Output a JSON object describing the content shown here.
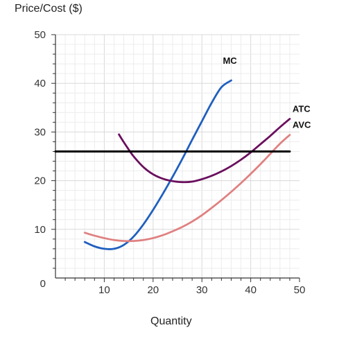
{
  "chart_data": {
    "type": "line",
    "ylabel": "Price/Cost ($)",
    "xlabel": "Quantity",
    "xlim": [
      0,
      50
    ],
    "ylim": [
      0,
      50
    ],
    "xticks": [
      10,
      20,
      30,
      40,
      50
    ],
    "yticks": [
      10,
      20,
      30,
      40,
      50
    ],
    "origin_label": "0",
    "grid": true,
    "series": [
      {
        "name": "MC",
        "color": "#1f5fbf",
        "points": [
          [
            6,
            7.4
          ],
          [
            8,
            6.5
          ],
          [
            10,
            6.0
          ],
          [
            12,
            6.0
          ],
          [
            14,
            6.8
          ],
          [
            16,
            8.5
          ],
          [
            18,
            11.0
          ],
          [
            20,
            14.0
          ],
          [
            22,
            17.3
          ],
          [
            24,
            20.8
          ],
          [
            26,
            24.5
          ],
          [
            28,
            28.4
          ],
          [
            30,
            32.2
          ],
          [
            32,
            36.0
          ],
          [
            34,
            39.2
          ],
          [
            36,
            40.6
          ]
        ]
      },
      {
        "name": "ATC",
        "color": "#6a0f5e",
        "points": [
          [
            13,
            29.5
          ],
          [
            14,
            27.9
          ],
          [
            15,
            26.4
          ],
          [
            16,
            25.0
          ],
          [
            18,
            22.8
          ],
          [
            20,
            21.3
          ],
          [
            22,
            20.4
          ],
          [
            24,
            19.9
          ],
          [
            26,
            19.7
          ],
          [
            28,
            19.8
          ],
          [
            30,
            20.3
          ],
          [
            32,
            21.0
          ],
          [
            34,
            21.9
          ],
          [
            36,
            23.0
          ],
          [
            38,
            24.3
          ],
          [
            40,
            25.8
          ],
          [
            42,
            27.5
          ],
          [
            44,
            29.2
          ],
          [
            46,
            31.0
          ],
          [
            48,
            32.7
          ]
        ]
      },
      {
        "name": "AVC",
        "color": "#e08080",
        "points": [
          [
            6,
            9.3
          ],
          [
            8,
            8.7
          ],
          [
            10,
            8.2
          ],
          [
            12,
            7.8
          ],
          [
            14,
            7.6
          ],
          [
            16,
            7.6
          ],
          [
            18,
            7.8
          ],
          [
            20,
            8.2
          ],
          [
            22,
            8.8
          ],
          [
            24,
            9.6
          ],
          [
            26,
            10.5
          ],
          [
            28,
            11.6
          ],
          [
            30,
            12.9
          ],
          [
            32,
            14.4
          ],
          [
            34,
            16.0
          ],
          [
            36,
            17.7
          ],
          [
            38,
            19.5
          ],
          [
            40,
            21.4
          ],
          [
            42,
            23.4
          ],
          [
            44,
            25.5
          ],
          [
            46,
            27.6
          ],
          [
            48,
            29.4
          ]
        ]
      },
      {
        "name": "",
        "color": "#000000",
        "points": [
          [
            0,
            26
          ],
          [
            48,
            26
          ]
        ]
      }
    ]
  }
}
